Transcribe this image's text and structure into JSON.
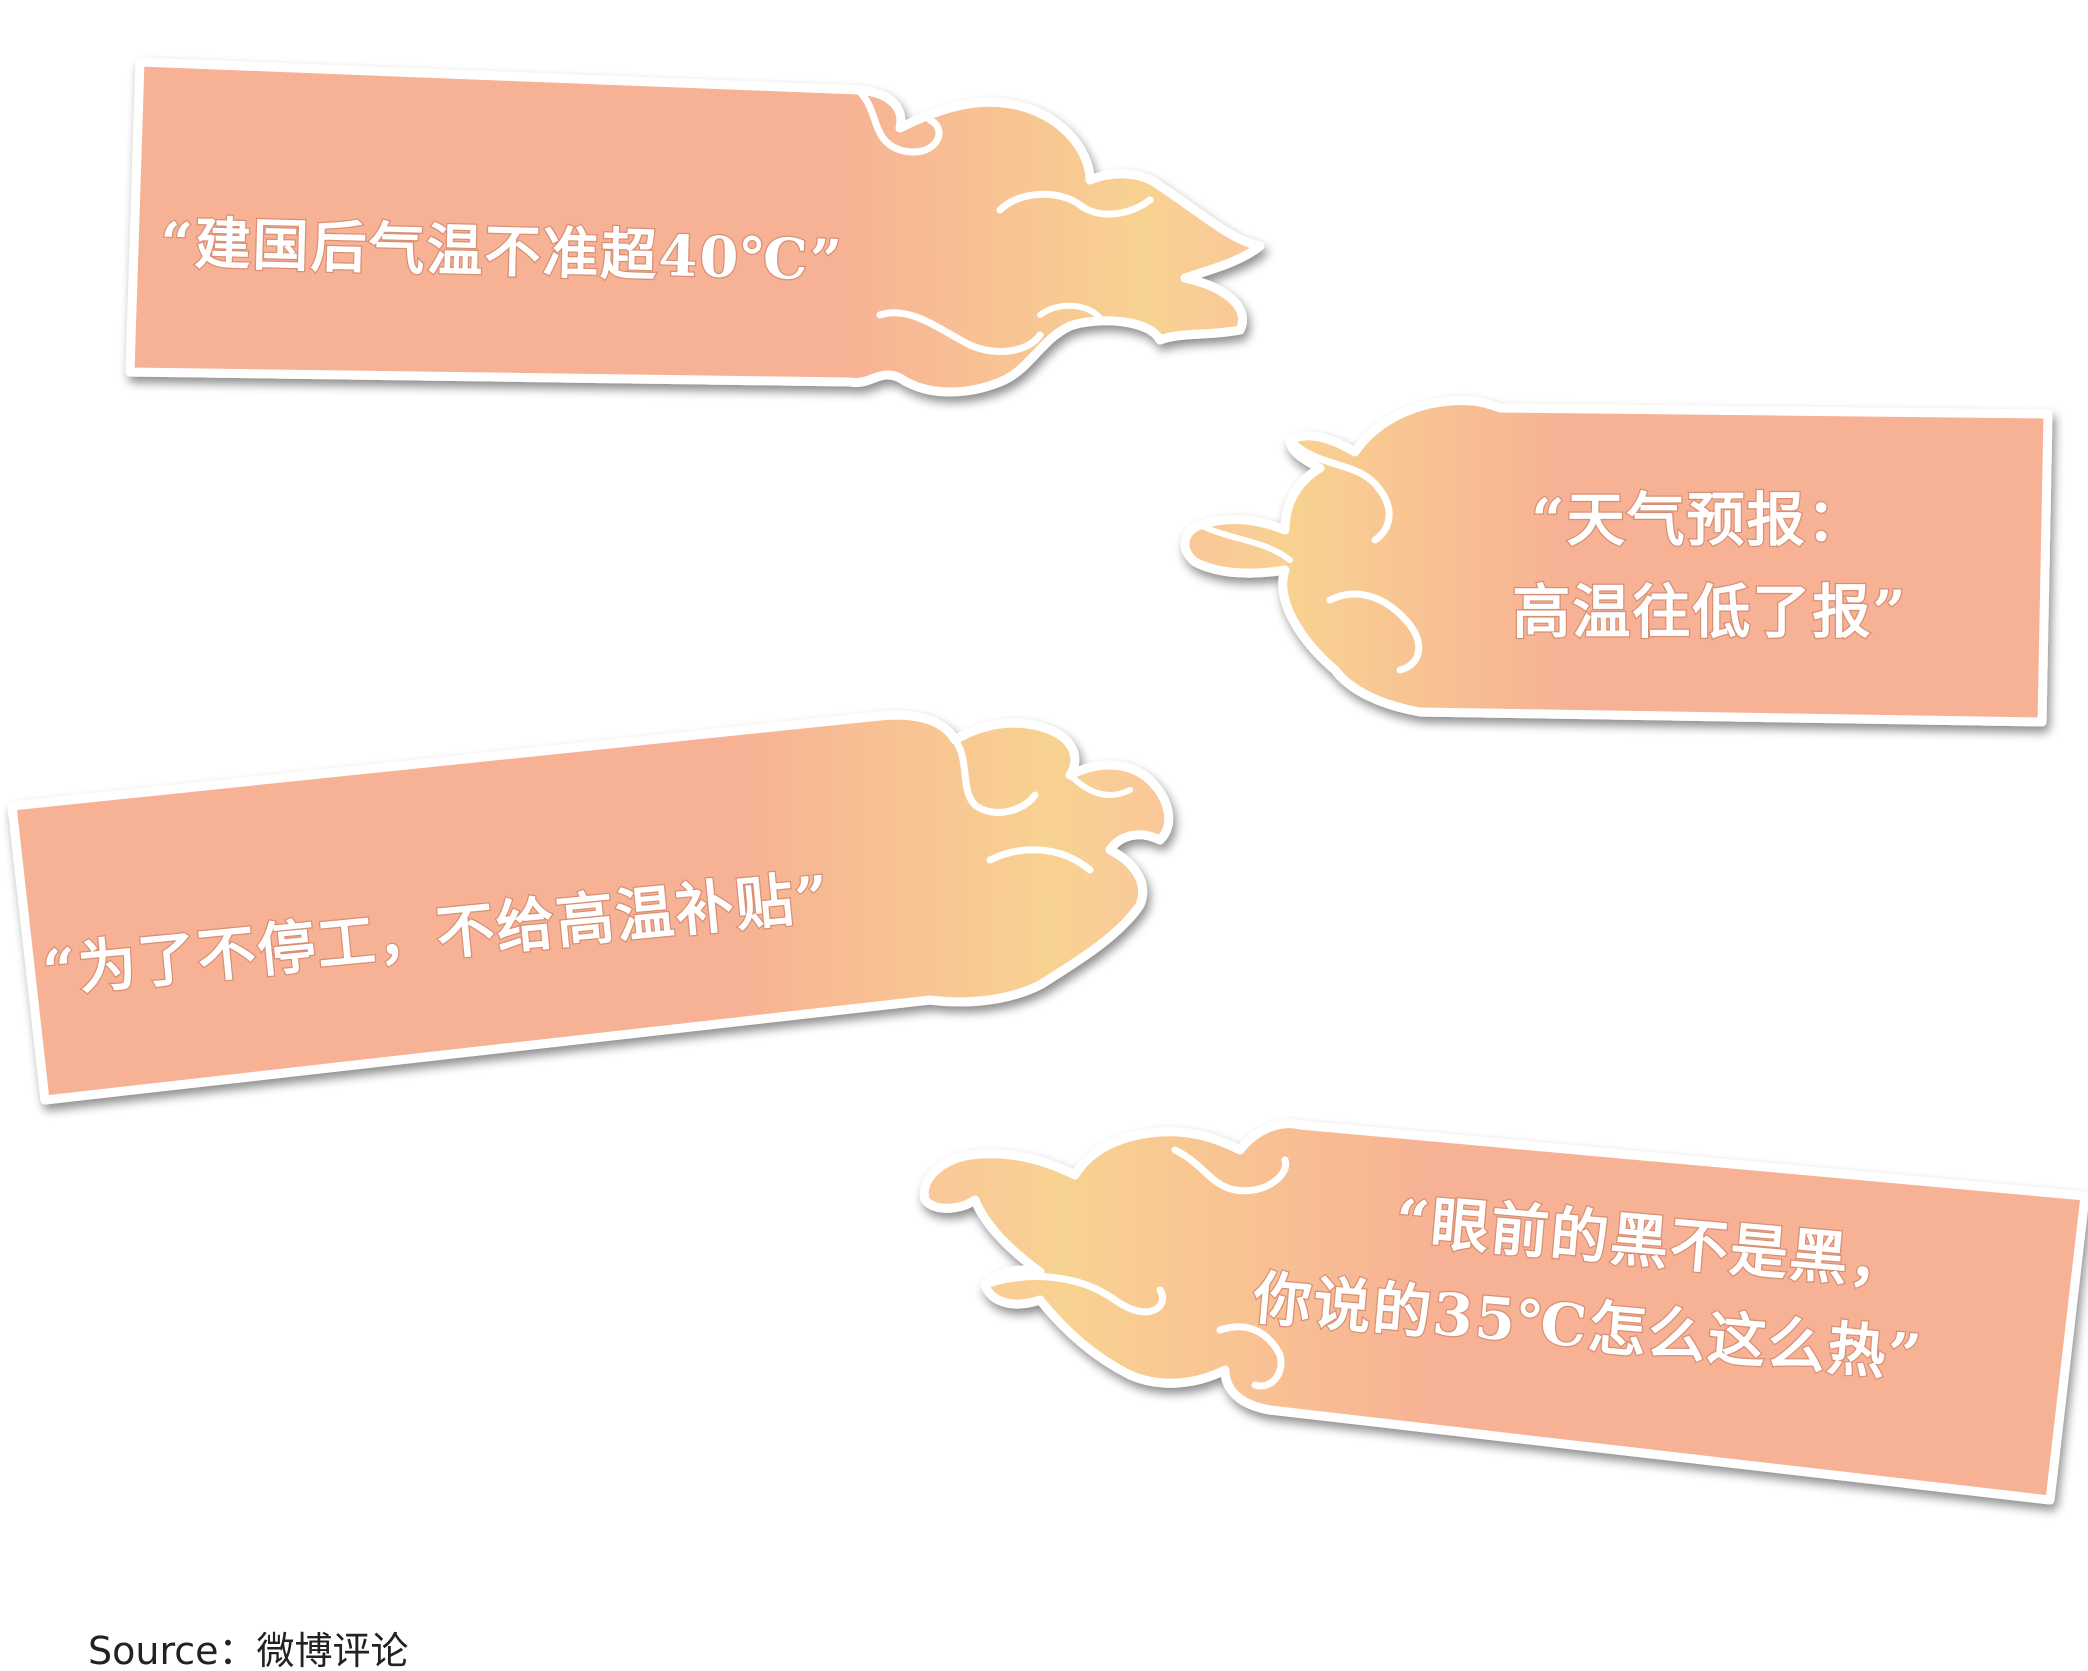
{
  "banners": [
    {
      "lines": [
        "“建国后气温不准超40℃”"
      ]
    },
    {
      "lines": [
        "“天气预报：",
        "高温往低了报”"
      ]
    },
    {
      "lines": [
        "“为了不停工，不给高温补贴”"
      ]
    },
    {
      "lines": [
        "“眼前的黑不是黑，",
        "你说的35℃怎么这么热”"
      ]
    }
  ],
  "source": "Source：微博评论",
  "colors": {
    "banner": "#f7b195",
    "flame_light": "#f8d291",
    "shadow": "#9a9a9a",
    "text": "#ffffff",
    "source_text": "#222222"
  }
}
